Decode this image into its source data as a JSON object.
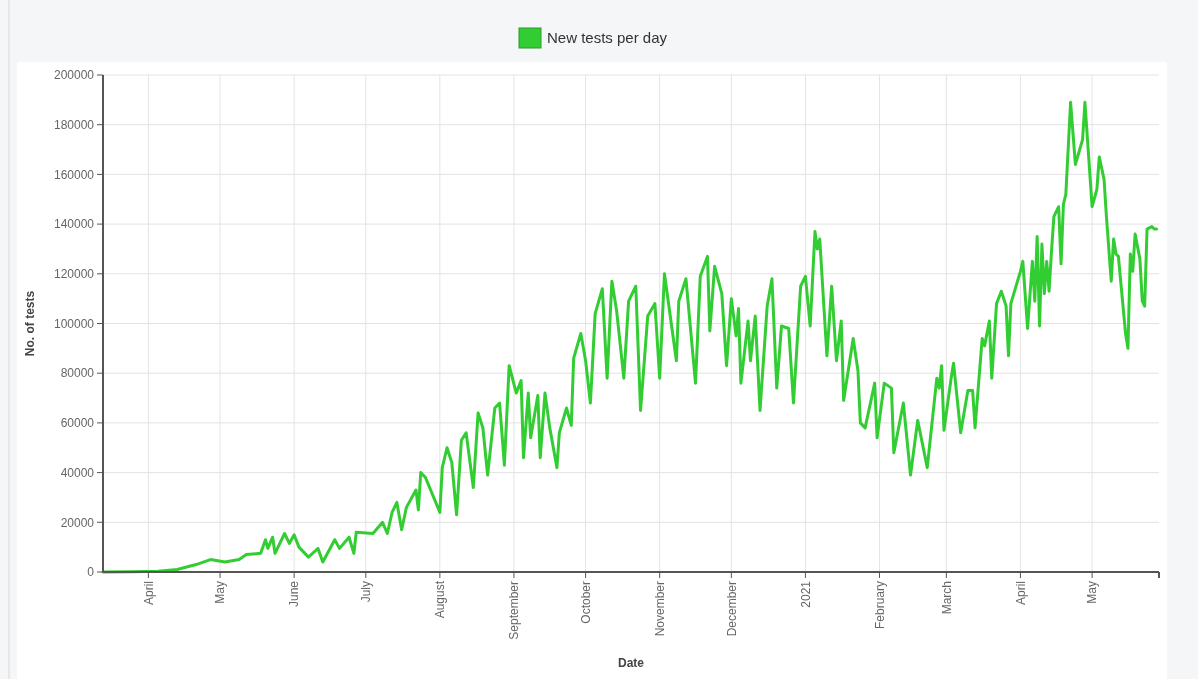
{
  "chart_data": {
    "type": "line",
    "xlabel": "Date",
    "ylabel": "No. of tests",
    "legend": "top",
    "grid": true,
    "marker": "none",
    "line_style": "solid",
    "xlim": [
      "2020-03-13",
      "2021-05-29"
    ],
    "xticks": [
      {
        "value": "2020-04-01",
        "label": "April"
      },
      {
        "value": "2020-05-01",
        "label": "May"
      },
      {
        "value": "2020-06-01",
        "label": "June"
      },
      {
        "value": "2020-07-01",
        "label": "July"
      },
      {
        "value": "2020-08-01",
        "label": "August"
      },
      {
        "value": "2020-09-01",
        "label": "September"
      },
      {
        "value": "2020-10-01",
        "label": "October"
      },
      {
        "value": "2020-11-01",
        "label": "November"
      },
      {
        "value": "2020-12-01",
        "label": "December"
      },
      {
        "value": "2021-01-01",
        "label": "2021"
      },
      {
        "value": "2021-02-01",
        "label": "February"
      },
      {
        "value": "2021-03-01",
        "label": "March"
      },
      {
        "value": "2021-04-01",
        "label": "April"
      },
      {
        "value": "2021-05-01",
        "label": "May"
      }
    ],
    "ylim": [
      0,
      200000
    ],
    "yticks": [
      0,
      20000,
      40000,
      60000,
      80000,
      100000,
      120000,
      140000,
      160000,
      180000,
      200000
    ],
    "x": [
      "2020-03-13",
      "2020-03-25",
      "2020-04-05",
      "2020-04-13",
      "2020-04-21",
      "2020-04-27",
      "2020-05-03",
      "2020-05-09",
      "2020-05-12",
      "2020-05-18",
      "2020-05-20",
      "2020-05-21",
      "2020-05-23",
      "2020-05-24",
      "2020-05-28",
      "2020-05-30",
      "2020-06-01",
      "2020-06-03",
      "2020-06-07",
      "2020-06-11",
      "2020-06-13",
      "2020-06-18",
      "2020-06-20",
      "2020-06-24",
      "2020-06-26",
      "2020-06-27",
      "2020-07-04",
      "2020-07-08",
      "2020-07-10",
      "2020-07-12",
      "2020-07-14",
      "2020-07-16",
      "2020-07-18",
      "2020-07-22",
      "2020-07-23",
      "2020-07-24",
      "2020-07-26",
      "2020-08-01",
      "2020-08-02",
      "2020-08-04",
      "2020-08-06",
      "2020-08-08",
      "2020-08-10",
      "2020-08-12",
      "2020-08-15",
      "2020-08-17",
      "2020-08-19",
      "2020-08-21",
      "2020-08-24",
      "2020-08-26",
      "2020-08-28",
      "2020-08-30",
      "2020-09-02",
      "2020-09-04",
      "2020-09-05",
      "2020-09-07",
      "2020-09-08",
      "2020-09-11",
      "2020-09-12",
      "2020-09-14",
      "2020-09-16",
      "2020-09-19",
      "2020-09-20",
      "2020-09-23",
      "2020-09-25",
      "2020-09-26",
      "2020-09-29",
      "2020-10-01",
      "2020-10-03",
      "2020-10-05",
      "2020-10-08",
      "2020-10-10",
      "2020-10-12",
      "2020-10-14",
      "2020-10-17",
      "2020-10-19",
      "2020-10-22",
      "2020-10-24",
      "2020-10-27",
      "2020-10-30",
      "2020-11-01",
      "2020-11-03",
      "2020-11-08",
      "2020-11-09",
      "2020-11-12",
      "2020-11-16",
      "2020-11-18",
      "2020-11-21",
      "2020-11-22",
      "2020-11-24",
      "2020-11-27",
      "2020-11-29",
      "2020-12-01",
      "2020-12-03",
      "2020-12-04",
      "2020-12-05",
      "2020-12-08",
      "2020-12-09",
      "2020-12-11",
      "2020-12-13",
      "2020-12-16",
      "2020-12-18",
      "2020-12-20",
      "2020-12-22",
      "2020-12-25",
      "2020-12-27",
      "2020-12-30",
      "2021-01-01",
      "2021-01-03",
      "2021-01-05",
      "2021-01-06",
      "2021-01-07",
      "2021-01-10",
      "2021-01-12",
      "2021-01-14",
      "2021-01-16",
      "2021-01-17",
      "2021-01-21",
      "2021-01-23",
      "2021-01-24",
      "2021-01-26",
      "2021-01-30",
      "2021-01-31",
      "2021-02-03",
      "2021-02-06",
      "2021-02-07",
      "2021-02-11",
      "2021-02-14",
      "2021-02-17",
      "2021-02-21",
      "2021-02-25",
      "2021-02-26",
      "2021-02-27",
      "2021-02-28",
      "2021-03-03",
      "2021-03-04",
      "2021-03-07",
      "2021-03-10",
      "2021-03-12",
      "2021-03-13",
      "2021-03-16",
      "2021-03-17",
      "2021-03-19",
      "2021-03-20",
      "2021-03-22",
      "2021-03-24",
      "2021-03-26",
      "2021-03-27",
      "2021-03-28",
      "2021-04-01",
      "2021-04-02",
      "2021-04-04",
      "2021-04-06",
      "2021-04-07",
      "2021-04-08",
      "2021-04-09",
      "2021-04-10",
      "2021-04-11",
      "2021-04-12",
      "2021-04-13",
      "2021-04-14",
      "2021-04-15",
      "2021-04-17",
      "2021-04-18",
      "2021-04-19",
      "2021-04-20",
      "2021-04-22",
      "2021-04-24",
      "2021-04-27",
      "2021-04-28",
      "2021-05-01",
      "2021-05-03",
      "2021-05-04",
      "2021-05-06",
      "2021-05-07",
      "2021-05-09",
      "2021-05-10",
      "2021-05-11",
      "2021-05-12",
      "2021-05-15",
      "2021-05-16",
      "2021-05-17",
      "2021-05-18",
      "2021-05-19",
      "2021-05-21",
      "2021-05-22",
      "2021-05-23",
      "2021-05-24",
      "2021-05-26",
      "2021-05-27",
      "2021-05-28"
    ],
    "series": [
      {
        "name": "New tests per day",
        "color": "#32cd32",
        "values": [
          0,
          100,
          300,
          1000,
          3000,
          5000,
          4000,
          5000,
          7000,
          7500,
          13000,
          9500,
          14000,
          7500,
          15500,
          11500,
          15000,
          10000,
          6000,
          9500,
          4000,
          13000,
          9500,
          14000,
          7500,
          16000,
          15500,
          20000,
          15500,
          24000,
          28000,
          17000,
          26000,
          33000,
          25000,
          40000,
          38000,
          24000,
          42000,
          50000,
          44000,
          23000,
          53000,
          56000,
          34000,
          64000,
          58000,
          39000,
          66000,
          68000,
          43000,
          83000,
          72000,
          77000,
          46000,
          72000,
          54000,
          71000,
          46000,
          72000,
          58000,
          42000,
          56000,
          66000,
          59000,
          86000,
          96000,
          85000,
          68000,
          104000,
          114000,
          78000,
          117000,
          105000,
          78000,
          109000,
          115000,
          65000,
          103000,
          108000,
          78000,
          120000,
          85000,
          109000,
          118000,
          76000,
          119000,
          127000,
          97000,
          123000,
          112000,
          83000,
          110000,
          95000,
          106000,
          76000,
          101000,
          85000,
          103000,
          65000,
          107000,
          118000,
          74000,
          99000,
          98000,
          68000,
          115000,
          119000,
          99000,
          137000,
          130000,
          134000,
          87000,
          115000,
          85000,
          101000,
          69000,
          94000,
          81000,
          60000,
          58000,
          76000,
          54000,
          76000,
          74000,
          48000,
          68000,
          39000,
          61000,
          42000,
          78000,
          74000,
          83000,
          57000,
          78000,
          84000,
          56000,
          73000,
          73000,
          58000,
          94000,
          91000,
          101000,
          78000,
          108000,
          113000,
          107000,
          87000,
          108000,
          121000,
          125000,
          98000,
          125000,
          109000,
          135000,
          99000,
          132000,
          112000,
          125000,
          113000,
          129000,
          143000,
          147000,
          124000,
          148000,
          152000,
          189000,
          164000,
          174000,
          189000,
          147000,
          154000,
          167000,
          158000,
          143000,
          117000,
          134000,
          128000,
          127000,
          96000,
          90000,
          128000,
          121000,
          136000,
          126000,
          109000,
          107000,
          138000,
          139000,
          138000,
          138000
        ]
      }
    ]
  }
}
